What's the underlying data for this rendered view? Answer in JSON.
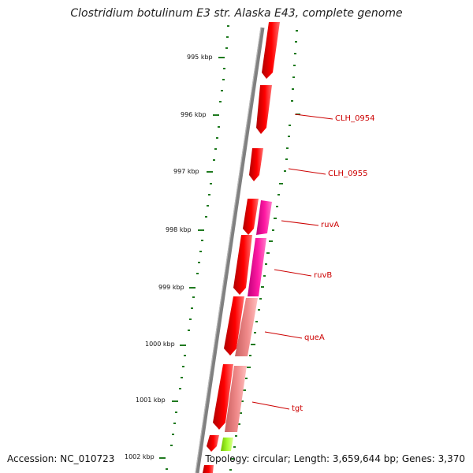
{
  "title": "Clostridium botulinum E3 str. Alaska E43, complete genome",
  "footer": {
    "accession": "Accession: NC_010723",
    "summary": "Topology: circular; Length: 3,659,644 bp; Genes: 3,370"
  },
  "ticks": [
    {
      "label": "995 kbp",
      "kbp": 995
    },
    {
      "label": "996 kbp",
      "kbp": 996
    },
    {
      "label": "997 kbp",
      "kbp": 997
    },
    {
      "label": "998 kbp",
      "kbp": 998
    },
    {
      "label": "999 kbp",
      "kbp": 999
    },
    {
      "label": "1000 kbp",
      "kbp": 1000
    },
    {
      "label": "1001 kbp",
      "kbp": 1001
    },
    {
      "label": "1002 kbp",
      "kbp": 1002
    }
  ],
  "gene_labels": [
    "CLH_0954",
    "CLH_0955",
    "ruvA",
    "ruvB",
    "queA",
    "tgt"
  ],
  "colors": {
    "gene": "#ff0000",
    "gene_dark": "#c40000",
    "gene_light": "#ff6a6a",
    "cog_magenta": "#ff1aa3",
    "cog_salmon": "#f08a8a",
    "cog_green": "#aaff33",
    "backbone": "#808080",
    "gc_skew": "#1f7a1f",
    "label": "#cc0000"
  }
}
